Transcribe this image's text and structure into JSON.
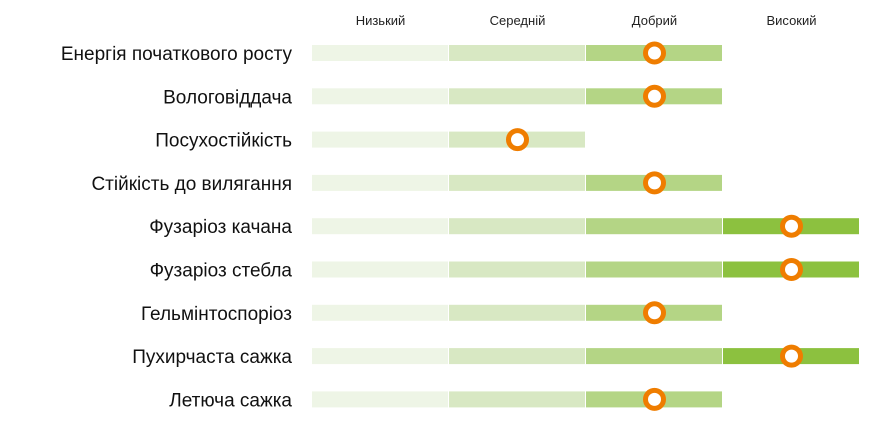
{
  "chart_data": {
    "type": "rating-bar",
    "levels": [
      "Низький",
      "Середній",
      "Добрий",
      "Високий"
    ],
    "rows": [
      {
        "label": "Енергія початкового росту",
        "value": 2.5
      },
      {
        "label": "Вологовіддача",
        "value": 2.5
      },
      {
        "label": "Посухостійкість",
        "value": 1.5
      },
      {
        "label": "Стійкість до вилягання",
        "value": 2.5
      },
      {
        "label": "Фузаріоз качана",
        "value": 3.5
      },
      {
        "label": "Фузаріоз стебла",
        "value": 3.5
      },
      {
        "label": "Гельмінтоспоріоз",
        "value": 2.5
      },
      {
        "label": "Пухирчаста сажка",
        "value": 3.5
      },
      {
        "label": "Летюча сажка",
        "value": 2.5
      }
    ],
    "xlim": [
      0,
      4
    ],
    "segment_colors": [
      "#eef5e6",
      "#d8e8c3",
      "#b4d585",
      "#8cc13f"
    ],
    "marker_color": "#ef7d00"
  }
}
